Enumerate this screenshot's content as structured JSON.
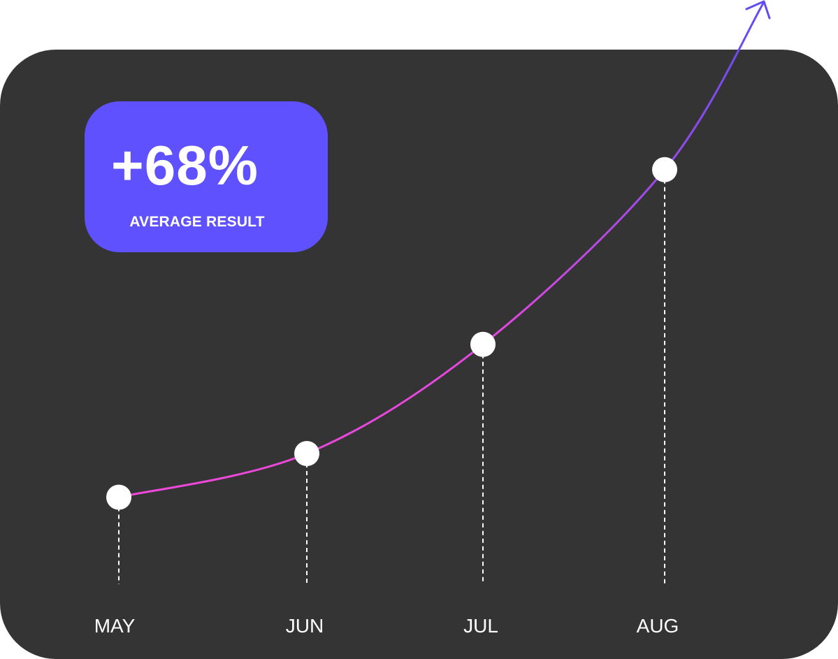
{
  "badge": {
    "value": "+68%",
    "label": "AVERAGE RESULT"
  },
  "colors": {
    "card": "#343434",
    "badge": "#5f51fe",
    "line_start": "#f048d8",
    "line_end": "#5f4df2",
    "points": "#ffffff"
  },
  "chart_data": {
    "type": "line",
    "categories": [
      "MAY",
      "JUN",
      "JUL",
      "AUG"
    ],
    "values": [
      10,
      20,
      45,
      85
    ],
    "ylim": [
      0,
      100
    ],
    "grid": false,
    "trend_arrow": true
  }
}
